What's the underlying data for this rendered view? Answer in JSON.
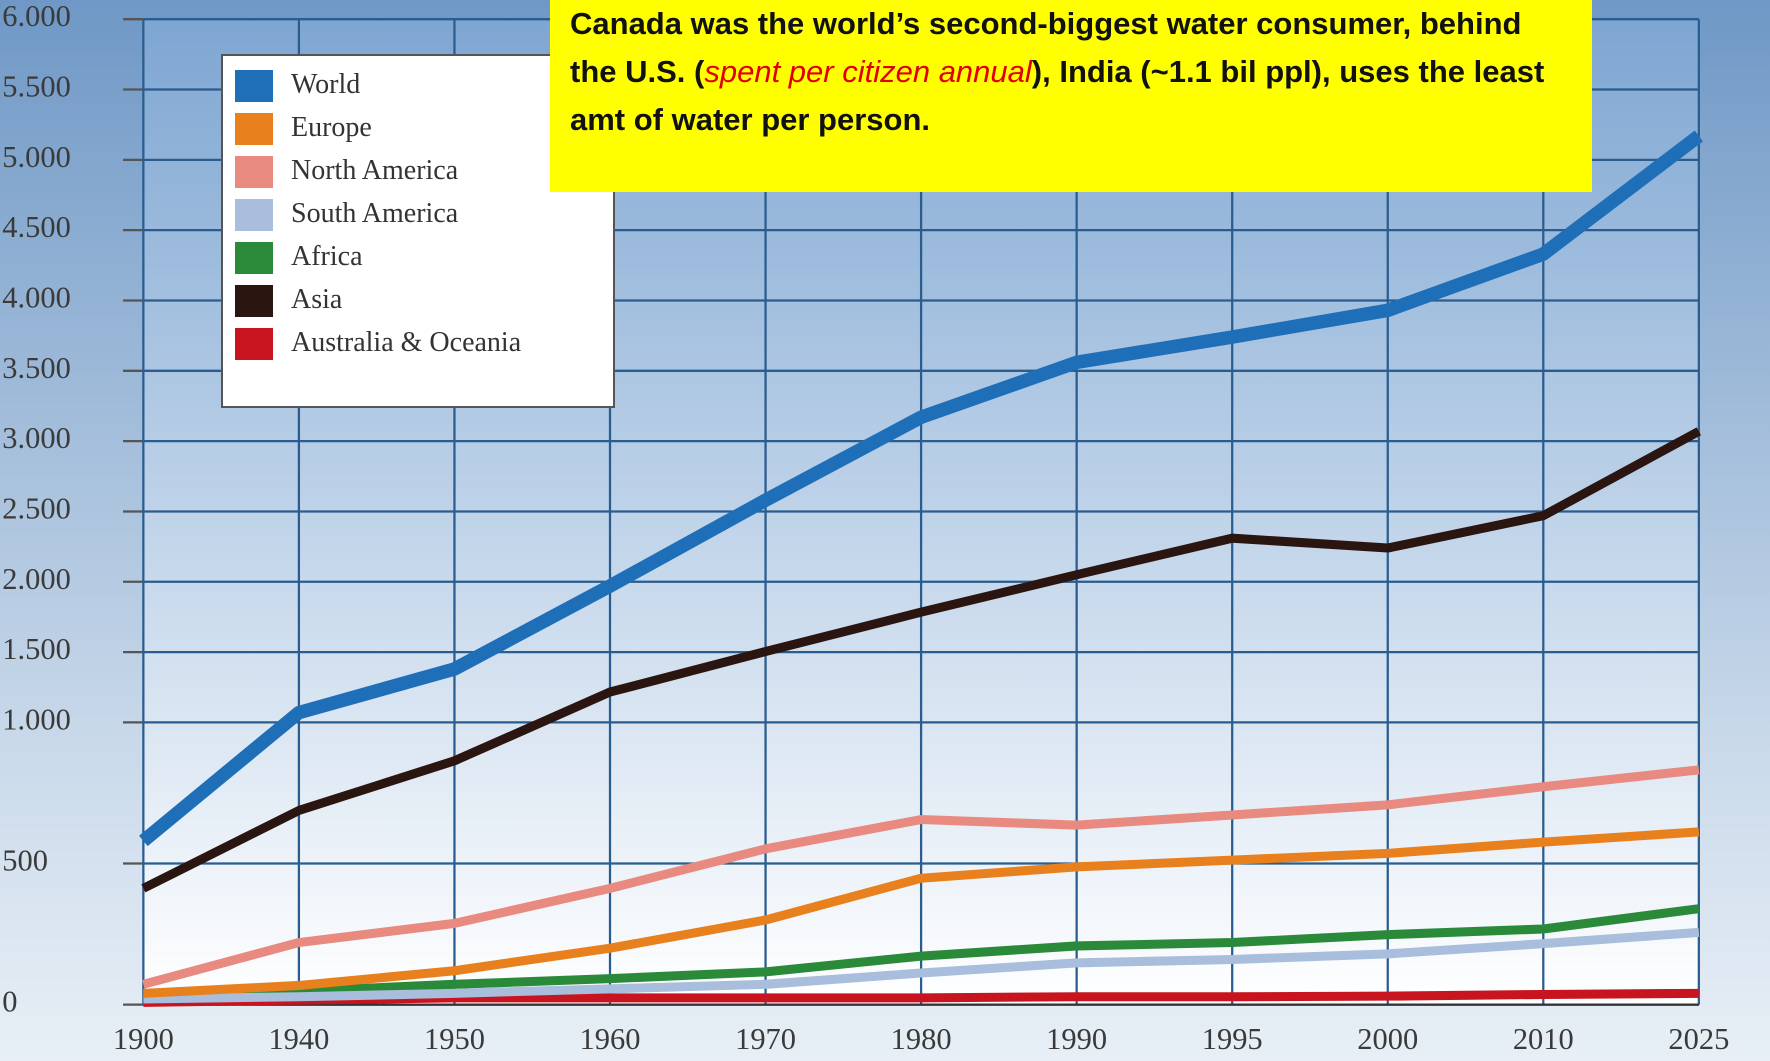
{
  "chart_data": {
    "type": "line",
    "annotation": [
      "Canada was the world’s second-biggest water consumer, behind the U.S. (",
      "spent per citizen annual",
      "), India (~1.1 bil ppl), uses the least amt of water per person."
    ],
    "categories": [
      "1900",
      "1940",
      "1950",
      "1960",
      "1970",
      "1980",
      "1990",
      "1995",
      "2000",
      "2010",
      "2025"
    ],
    "series": [
      {
        "name": "World",
        "color": "#1f6fb8",
        "values": [
          580,
          1070,
          1380,
          1970,
          2580,
          3170,
          3560,
          3740,
          3930,
          4330,
          5170
        ]
      },
      {
        "name": "Europe",
        "color": "#e8801e",
        "values": [
          40,
          68,
          120,
          200,
          300,
          448,
          488,
          512,
          536,
          576,
          612
        ]
      },
      {
        "name": "North America",
        "color": "#e88a80",
        "values": [
          72,
          220,
          288,
          412,
          552,
          656,
          636,
          672,
          708,
          772,
          832
        ]
      },
      {
        "name": "South America",
        "color": "#a8bedc",
        "values": [
          20,
          28,
          40,
          56,
          72,
          112,
          148,
          160,
          180,
          216,
          256
        ]
      },
      {
        "name": "Africa",
        "color": "#2a8a3a",
        "values": [
          32,
          48,
          72,
          92,
          116,
          172,
          208,
          220,
          248,
          268,
          340
        ]
      },
      {
        "name": "Asia",
        "color": "#2a1510",
        "values": [
          412,
          688,
          864,
          1216,
          1504,
          1784,
          2050,
          2310,
          2240,
          2470,
          3070
        ]
      },
      {
        "name": "Australia & Oceania",
        "color": "#c8141e",
        "values": [
          8,
          16,
          24,
          24,
          24,
          24,
          28,
          28,
          30,
          36,
          40
        ]
      }
    ],
    "ylim": [
      0,
      6000
    ],
    "yticks": [
      0,
      500,
      {
        "value": 1000,
        "label": "1.000"
      },
      {
        "value": 1500,
        "label": "1.500"
      },
      {
        "value": 2000,
        "label": "2.000"
      },
      {
        "value": 2500,
        "label": "2.500"
      },
      {
        "value": 3000,
        "label": "3.000"
      },
      {
        "value": 3500,
        "label": "3.500"
      },
      {
        "value": 4000,
        "label": "4.000"
      },
      {
        "value": 4500,
        "label": "4.500"
      },
      {
        "value": 5000,
        "label": "5.000"
      },
      {
        "value": 5500,
        "label": "5.500"
      },
      {
        "value": 6000,
        "label": "6.000"
      }
    ],
    "grid": true
  }
}
